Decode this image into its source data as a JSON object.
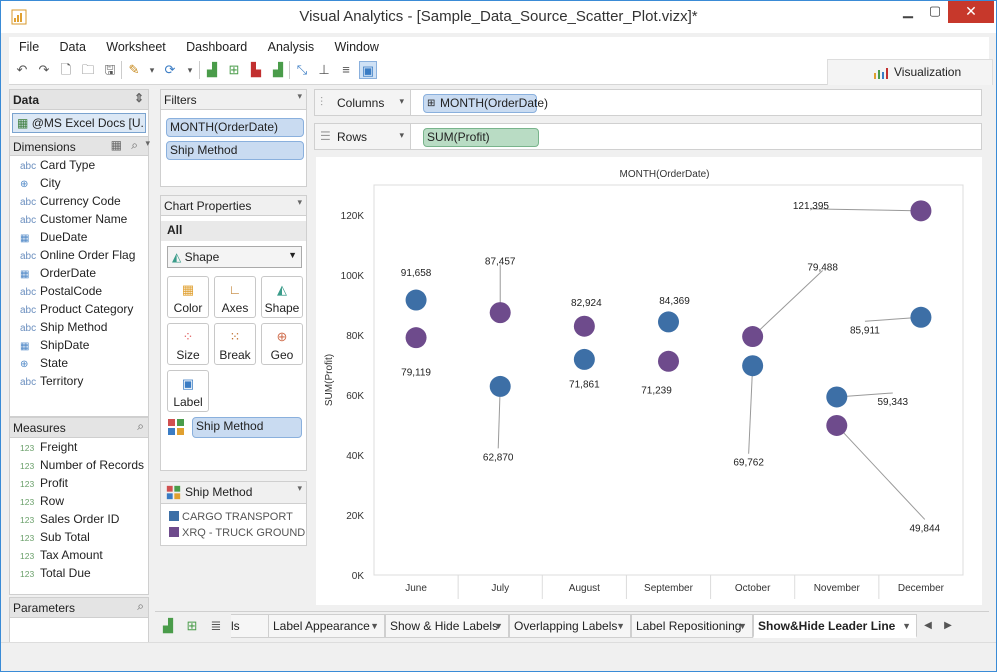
{
  "window": {
    "title": "Visual Analytics - [Sample_Data_Source_Scatter_Plot.vizx]*"
  },
  "menu": [
    "File",
    "Data",
    "Worksheet",
    "Dashboard",
    "Analysis",
    "Window"
  ],
  "toolbar": {
    "visualization_tab": "Visualization"
  },
  "data_panel": {
    "header": "Data",
    "source": "@MS Excel Docs [U...",
    "dimensions_header": "Dimensions",
    "dimensions": [
      {
        "type": "abc",
        "label": "Card Type"
      },
      {
        "type": "geo",
        "label": "City"
      },
      {
        "type": "abc",
        "label": "Currency Code"
      },
      {
        "type": "abc",
        "label": "Customer Name"
      },
      {
        "type": "date",
        "label": "DueDate"
      },
      {
        "type": "abc",
        "label": "Online Order Flag"
      },
      {
        "type": "date",
        "label": "OrderDate"
      },
      {
        "type": "abc",
        "label": "PostalCode"
      },
      {
        "type": "abc",
        "label": "Product Category"
      },
      {
        "type": "abc",
        "label": "Ship Method"
      },
      {
        "type": "date",
        "label": "ShipDate"
      },
      {
        "type": "geo",
        "label": "State"
      },
      {
        "type": "abc",
        "label": "Territory"
      }
    ],
    "measures_header": "Measures",
    "measures": [
      {
        "type": "123",
        "label": "Freight"
      },
      {
        "type": "123",
        "label": "Number of Records"
      },
      {
        "type": "123",
        "label": "Profit"
      },
      {
        "type": "123",
        "label": "Row"
      },
      {
        "type": "123",
        "label": "Sales Order ID"
      },
      {
        "type": "123",
        "label": "Sub Total"
      },
      {
        "type": "123",
        "label": "Tax Amount"
      },
      {
        "type": "123",
        "label": "Total Due"
      }
    ],
    "parameters_header": "Parameters"
  },
  "filters": {
    "header": "Filters",
    "items": [
      "MONTH(OrderDate)",
      "Ship Method"
    ]
  },
  "chart_properties": {
    "header": "Chart Properties",
    "all_label": "All",
    "mark_type": "Shape",
    "buttons": [
      "Color",
      "Axes",
      "Shape",
      "Size",
      "Break",
      "Geo",
      "Label"
    ],
    "assigned": "Ship Method"
  },
  "legend": {
    "header": "Ship Method",
    "items": [
      {
        "label": "CARGO TRANSPORT",
        "color": "#3d6fa6"
      },
      {
        "label": "XRQ - TRUCK GROUND",
        "color": "#6e4b8c"
      }
    ]
  },
  "shelves": {
    "columns_label": "Columns",
    "columns_pill": "MONTH(OrderDate)",
    "rows_label": "Rows",
    "rows_pill": "SUM(Profit)"
  },
  "sheet_tabs": {
    "items": [
      "ls",
      "Label Appearance",
      "Show & Hide Labels",
      "Overlapping Labels",
      "Label Repositioning",
      "Show&Hide Leader Line"
    ],
    "active": "Show&Hide Leader Line"
  },
  "chart_data": {
    "type": "scatter",
    "title": "MONTH(OrderDate)",
    "xlabel": "",
    "ylabel": "SUM(Profit)",
    "categories": [
      "June",
      "July",
      "August",
      "September",
      "October",
      "November",
      "December"
    ],
    "ylim": [
      0,
      130000
    ],
    "yticks": [
      0,
      20000,
      40000,
      60000,
      80000,
      100000,
      120000
    ],
    "ytick_labels": [
      "0K",
      "20K",
      "40K",
      "60K",
      "80K",
      "100K",
      "120K"
    ],
    "series": [
      {
        "name": "CARGO TRANSPORT",
        "color": "#3d6fa6",
        "values": [
          91658,
          62870,
          71861,
          84369,
          69762,
          59343,
          85911
        ]
      },
      {
        "name": "XRQ - TRUCK GROUND",
        "color": "#6e4b8c",
        "values": [
          79119,
          87457,
          82924,
          71239,
          79488,
          49844,
          121395
        ]
      }
    ],
    "data_labels": {
      "CARGO TRANSPORT": [
        "91,658",
        "62,870",
        "71,861",
        "84,369",
        "69,762",
        "59,343",
        "85,911"
      ],
      "XRQ - TRUCK GROUND": [
        "79,119",
        "87,457",
        "82,924",
        "71,239",
        "79,488",
        "49,844",
        "121,395"
      ]
    }
  }
}
